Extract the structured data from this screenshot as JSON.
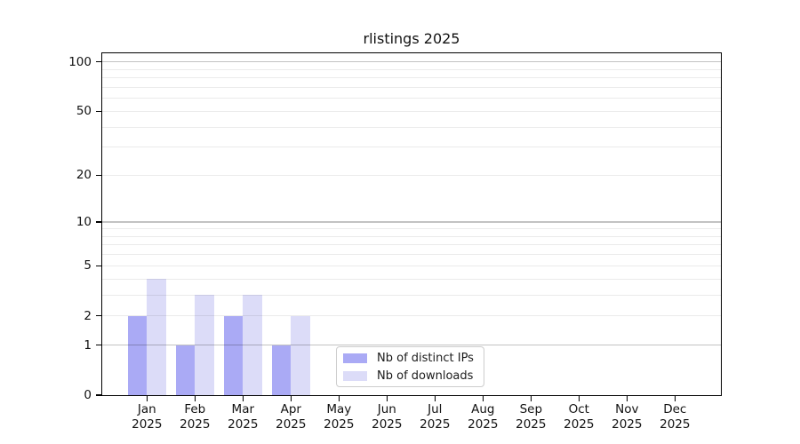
{
  "chart_data": {
    "type": "bar",
    "title": "rlistings 2025",
    "categories": [
      "Jan",
      "Feb",
      "Mar",
      "Apr",
      "May",
      "Jun",
      "Jul",
      "Aug",
      "Sep",
      "Oct",
      "Nov",
      "Dec"
    ],
    "year": "2025",
    "series": [
      {
        "name": "Nb of distinct IPs",
        "color": "#aaaaf5",
        "values": [
          2,
          1,
          2,
          1,
          0,
          0,
          0,
          0,
          0,
          0,
          0,
          0
        ]
      },
      {
        "name": "Nb of downloads",
        "color": "#dcdcf8",
        "values": [
          4,
          3,
          3,
          2,
          0,
          0,
          0,
          0,
          0,
          0,
          0,
          0
        ]
      }
    ],
    "xlabel": "",
    "ylabel": "",
    "yscale": "log1p",
    "ylim": [
      0,
      113
    ],
    "ytick_values": [
      0,
      1,
      2,
      5,
      10,
      20,
      50,
      100
    ],
    "ytick_labels": [
      "0",
      "1",
      "2",
      "5",
      "10",
      "20",
      "50",
      "100"
    ],
    "major_grid_values": [
      1,
      10,
      100
    ],
    "minor_grid_values": [
      2,
      3,
      4,
      5,
      6,
      7,
      8,
      9,
      20,
      30,
      40,
      50,
      60,
      70,
      80,
      90
    ],
    "grid": true,
    "legend_position": "lower center",
    "axis_color": "#000000",
    "background_color": "#ffffff"
  }
}
